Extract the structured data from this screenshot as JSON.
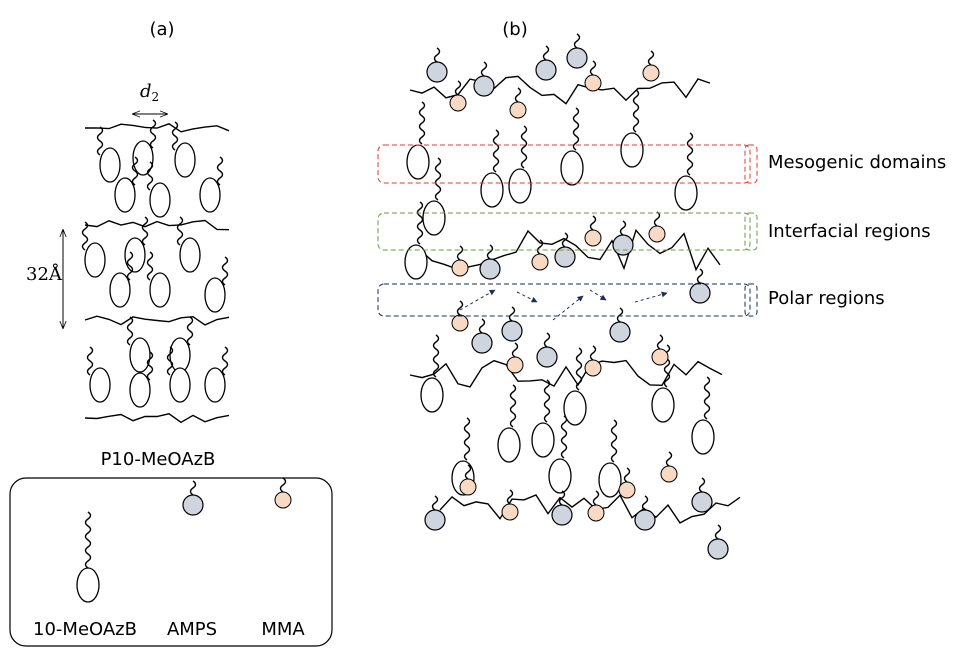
{
  "panel_a": {
    "label": "(a)",
    "spacing_label": {
      "symbol": "d",
      "subscript": "2"
    },
    "layer_label": "32Å",
    "caption": "P10-MeOAzB"
  },
  "legend": {
    "items": [
      "10-MeOAzB",
      "AMPS",
      "MMA"
    ]
  },
  "panel_b": {
    "label": "(b)",
    "regions": [
      "Mesogenic domains",
      "Interfacial regions",
      "Polar regions"
    ]
  }
}
